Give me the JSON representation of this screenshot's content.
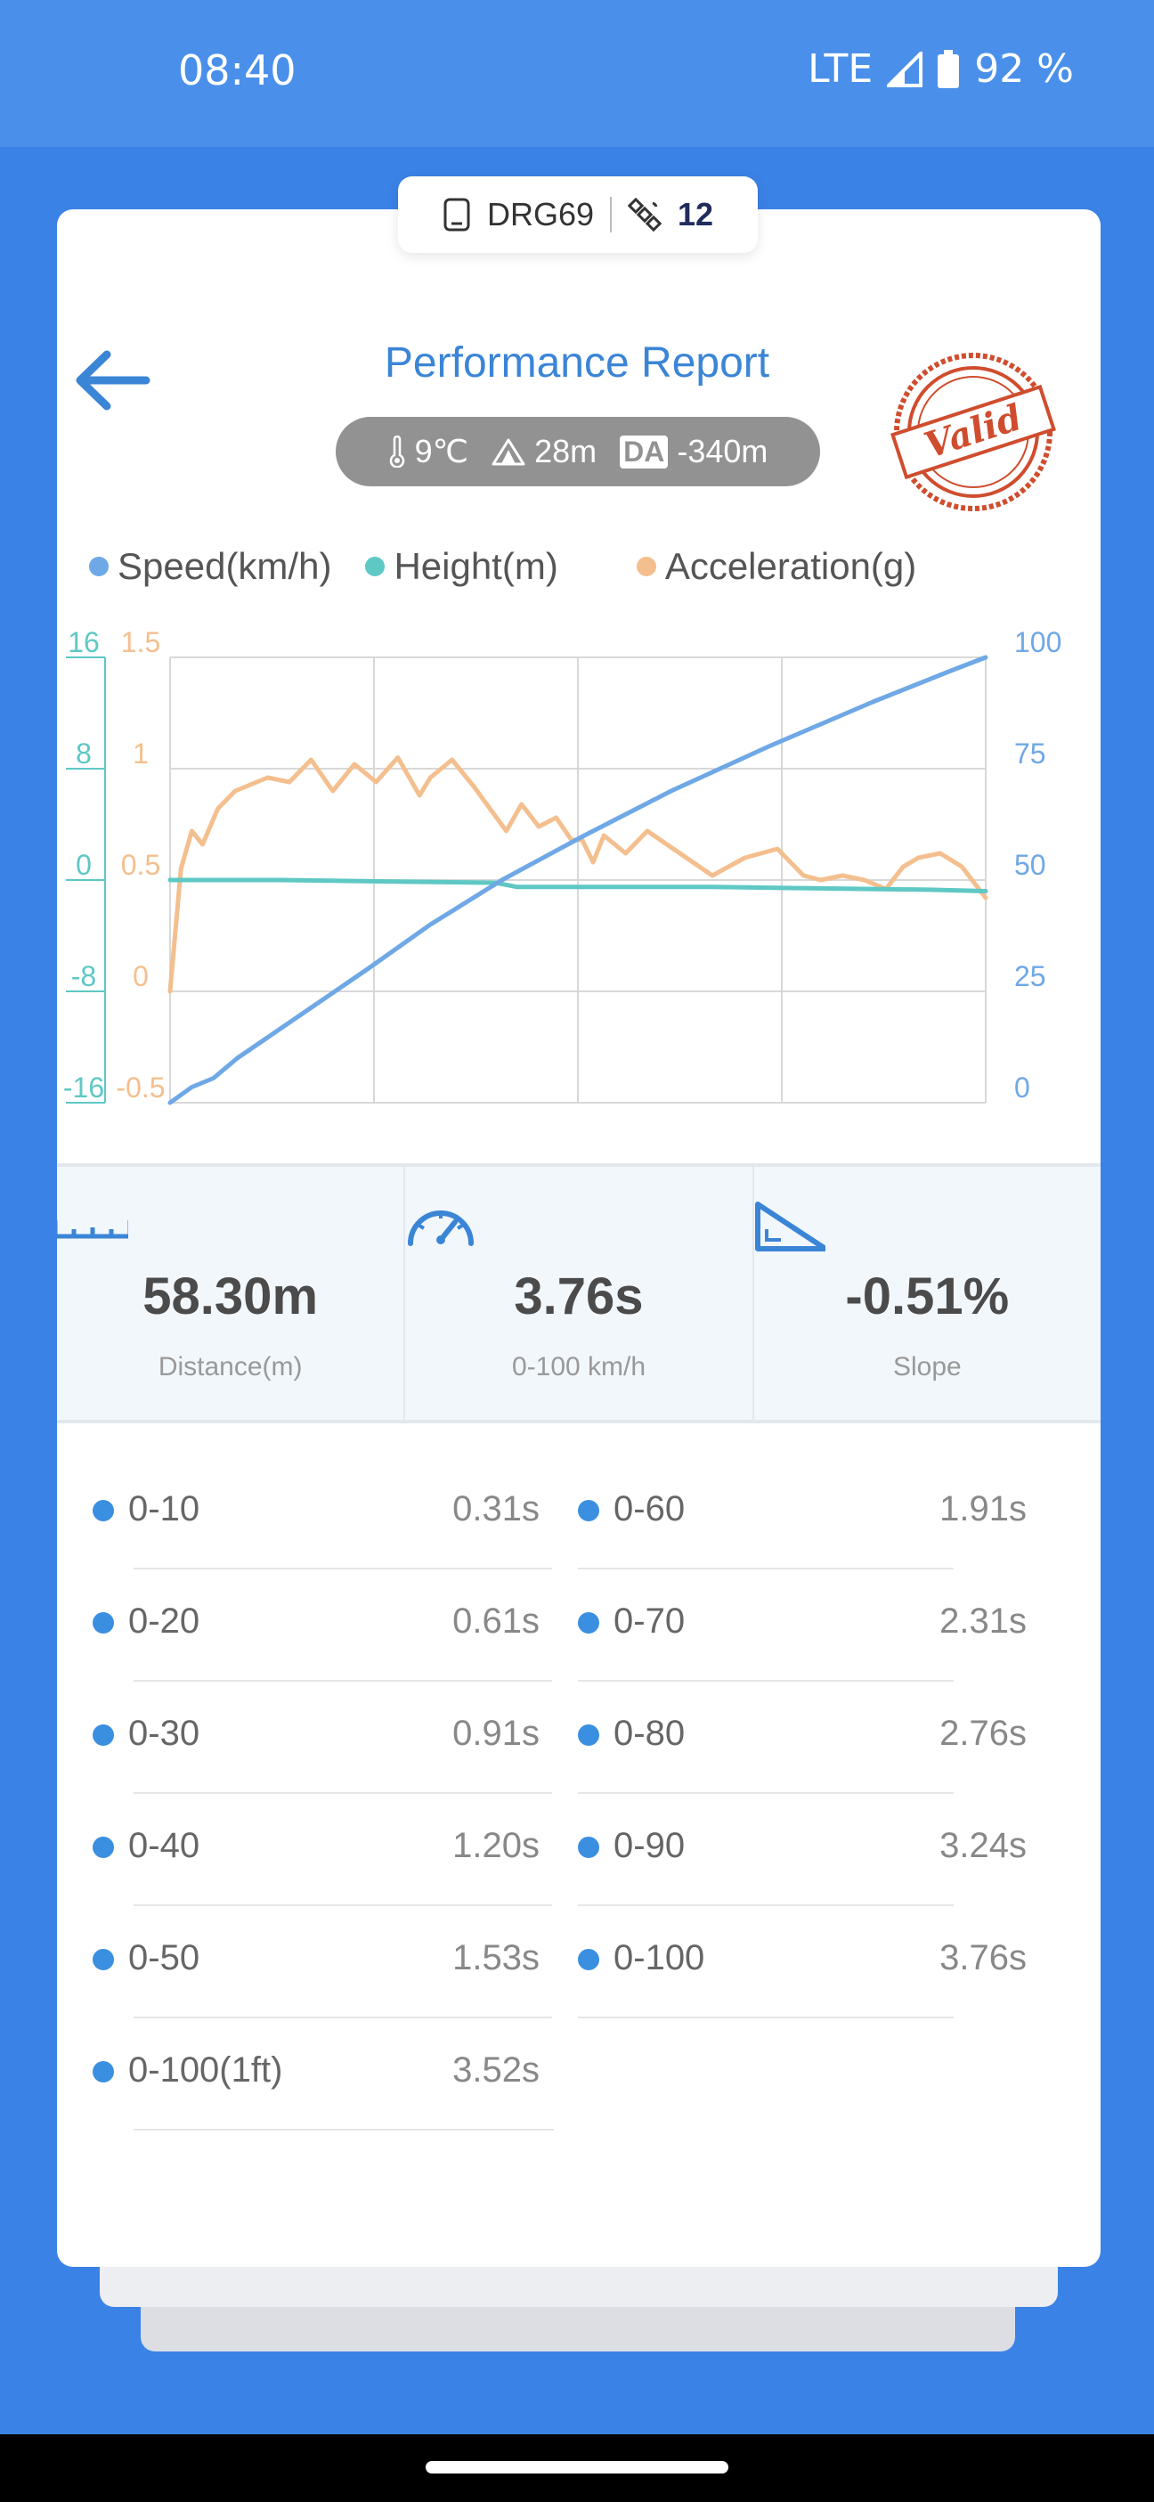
{
  "status_bar": {
    "time": "08:40",
    "network": "LTE",
    "battery": "92 %"
  },
  "device": {
    "name": "DRG69",
    "satellites": "12"
  },
  "header": {
    "title": "Performance Report",
    "stamp_text": "Valid"
  },
  "environment": {
    "temperature": "9℃",
    "altitude": "28m",
    "da_label": "DA",
    "density_altitude": "-340m"
  },
  "legend": [
    {
      "label": "Speed(km/h)",
      "color": "#6fa8e6"
    },
    {
      "label": "Height(m)",
      "color": "#5ec8c4"
    },
    {
      "label": "Acceleration(g)",
      "color": "#f4bf8e"
    }
  ],
  "chart_data": {
    "type": "line",
    "x_range": [
      0,
      3.76
    ],
    "y_left_height": {
      "ticks": [
        "16",
        "8",
        "0",
        "-8",
        "-16"
      ],
      "range": [
        -16,
        16
      ],
      "color": "#5ec8c4"
    },
    "y_left_accel": {
      "ticks": [
        "1.5",
        "1",
        "0.5",
        "0",
        "-0.5"
      ],
      "range": [
        -0.5,
        1.5
      ],
      "color": "#f4bf8e"
    },
    "y_right_speed": {
      "ticks": [
        "100",
        "75",
        "50",
        "25",
        "0"
      ],
      "range": [
        0,
        100
      ],
      "color": "#6fa8e6"
    },
    "grid": true,
    "series": [
      {
        "name": "Speed(km/h)",
        "color": "#6fa8e6",
        "x": [
          0,
          0.1,
          0.2,
          0.31,
          0.61,
          0.91,
          1.2,
          1.53,
          1.91,
          2.31,
          2.76,
          3.24,
          3.6,
          3.76
        ],
        "y": [
          0,
          3.5,
          5.5,
          10,
          20,
          30,
          40,
          50,
          60,
          70,
          80,
          90,
          97,
          100
        ]
      },
      {
        "name": "Height(m)",
        "color": "#5ec8c4",
        "x": [
          0,
          0.5,
          1.0,
          1.5,
          1.6,
          2.0,
          2.5,
          3.0,
          3.5,
          3.76
        ],
        "y": [
          0,
          0,
          -0.1,
          -0.2,
          -0.5,
          -0.5,
          -0.5,
          -0.6,
          -0.7,
          -0.8
        ]
      },
      {
        "name": "Acceleration(g)",
        "color": "#f4bf8e",
        "x": [
          0,
          0.05,
          0.1,
          0.15,
          0.22,
          0.3,
          0.45,
          0.55,
          0.65,
          0.75,
          0.85,
          0.95,
          1.05,
          1.15,
          1.2,
          1.3,
          1.4,
          1.55,
          1.62,
          1.7,
          1.78,
          1.85,
          1.9,
          1.95,
          2.0,
          2.1,
          2.2,
          2.35,
          2.5,
          2.65,
          2.8,
          2.92,
          3.0,
          3.1,
          3.2,
          3.3,
          3.38,
          3.45,
          3.55,
          3.65,
          3.76
        ],
        "y": [
          0,
          0.55,
          0.72,
          0.66,
          0.82,
          0.9,
          0.96,
          0.94,
          1.04,
          0.9,
          1.02,
          0.94,
          1.05,
          0.88,
          0.96,
          1.04,
          0.92,
          0.72,
          0.84,
          0.74,
          0.78,
          0.68,
          0.68,
          0.58,
          0.7,
          0.62,
          0.72,
          0.62,
          0.52,
          0.6,
          0.64,
          0.52,
          0.5,
          0.52,
          0.5,
          0.46,
          0.56,
          0.6,
          0.62,
          0.56,
          0.42
        ]
      }
    ]
  },
  "stats": [
    {
      "icon": "ruler-icon",
      "value": "58.30m",
      "label": "Distance(m)"
    },
    {
      "icon": "speedometer-icon",
      "value": "3.76s",
      "label": "0-100 km/h"
    },
    {
      "icon": "slope-icon",
      "value": "-0.51%",
      "label": "Slope"
    }
  ],
  "splits_left": [
    {
      "name": "0-10",
      "time": "0.31s"
    },
    {
      "name": "0-20",
      "time": "0.61s"
    },
    {
      "name": "0-30",
      "time": "0.91s"
    },
    {
      "name": "0-40",
      "time": "1.20s"
    },
    {
      "name": "0-50",
      "time": "1.53s"
    },
    {
      "name": "0-100(1ft)",
      "time": "3.52s"
    }
  ],
  "splits_right": [
    {
      "name": "0-60",
      "time": "1.91s"
    },
    {
      "name": "0-70",
      "time": "2.31s"
    },
    {
      "name": "0-80",
      "time": "2.76s"
    },
    {
      "name": "0-90",
      "time": "3.24s"
    },
    {
      "name": "0-100",
      "time": "3.76s"
    }
  ]
}
